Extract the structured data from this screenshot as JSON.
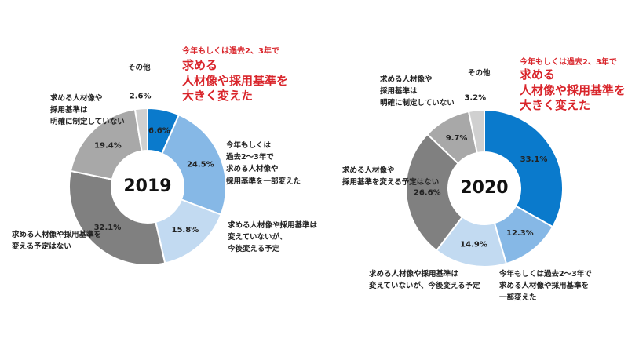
{
  "chart_data": [
    {
      "type": "donut",
      "center_label": "2019",
      "highlight": {
        "lead": "今年もしくは過去2、3年で",
        "text": "求める\n人材像や採用基準を\n大きく変えた",
        "color": "#d9252b"
      },
      "categories": [
        null,
        "今年もしくは\n過去2～3年で\n求める人材像や\n採用基準を一部変えた",
        "求める人材像や採用基準は\n変えていないが、\n今後変える予定",
        "求める人材像や採用基準を\n変える予定はない",
        "求める人材像や\n採用基準は\n明確に制定していない",
        "その他"
      ],
      "values": [
        6.6,
        24.5,
        15.8,
        32.1,
        19.4,
        2.6
      ],
      "value_labels": [
        "6.6%",
        "24.5%",
        "15.8%",
        "32.1%",
        "19.4%",
        "2.6%"
      ],
      "colors": [
        "#0a7acc",
        "#86b8e6",
        "#c2daf1",
        "#808080",
        "#a8a8a8",
        "#d0d0d0"
      ]
    },
    {
      "type": "donut",
      "center_label": "2020",
      "highlight": {
        "lead": "今年もしくは過去2、3年で",
        "text": "求める\n人材像や採用基準を\n大きく変えた",
        "color": "#d9252b"
      },
      "categories": [
        null,
        "今年もしくは過去2～3年で\n求める人材像や採用基準を\n一部変えた",
        "求める人材像や採用基準は\n変えていないが、今後変える予定",
        "求める人材像や\n採用基準を変える予定はない",
        "求める人材像や\n採用基準は\n明確に制定していない",
        "その他"
      ],
      "values": [
        33.1,
        12.3,
        14.9,
        26.6,
        9.7,
        3.2
      ],
      "value_labels": [
        "33.1%",
        "12.3%",
        "14.9%",
        "26.6%",
        "9.7%",
        "3.2%"
      ],
      "colors": [
        "#0a7acc",
        "#86b8e6",
        "#c2daf1",
        "#808080",
        "#a8a8a8",
        "#d0d0d0"
      ]
    }
  ]
}
